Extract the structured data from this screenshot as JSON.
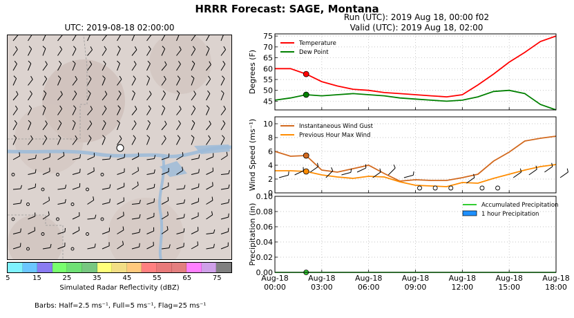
{
  "suptitle": "HRRR Forecast: SAGE, Montana",
  "map": {
    "title": "UTC: 2019-08-18 02:00:00",
    "colorbar_label": "Simulated Radar Reflectivity (dBZ)",
    "colorbar_ticks": [
      "5",
      "15",
      "25",
      "35",
      "45",
      "55",
      "65",
      "75"
    ],
    "colorbar_colors": [
      "#7ff2ff",
      "#6bc6ff",
      "#8a7cf2",
      "#78ff6e",
      "#6fe075",
      "#78c781",
      "#ffff7a",
      "#f2de85",
      "#ffc97d",
      "#ff8080",
      "#e87a7a",
      "#e37f7f",
      "#ff80ff",
      "#cfa0e8",
      "#808080"
    ],
    "barbs_note": "Barbs: Half=2.5 ms⁻¹, Full=5 ms⁻¹, Flag=25 ms⁻¹"
  },
  "run": {
    "line1": "Run (UTC): 2019 Aug 18, 00:00 f02",
    "line2": "Valid (UTC): 2019 Aug 18, 02:00"
  },
  "chart_data": [
    {
      "type": "line",
      "ylabel": "Degrees (F)",
      "ylim": [
        41,
        76
      ],
      "yticks": [
        45,
        50,
        55,
        60,
        65,
        70,
        75
      ],
      "grid": true,
      "legend": "top-left",
      "x_hours": [
        0,
        1,
        2,
        3,
        4,
        5,
        6,
        7,
        8,
        9,
        10,
        11,
        12,
        13,
        14,
        15,
        16,
        17,
        18
      ],
      "series": [
        {
          "name": "Temperature",
          "color": "#ff0000",
          "values": [
            60,
            60,
            57.5,
            54,
            52,
            50.5,
            50,
            49,
            48.5,
            48,
            47.5,
            47,
            48,
            52.5,
            57.5,
            63,
            67.5,
            72.5,
            75
          ]
        },
        {
          "name": "Dew Point",
          "color": "#008000",
          "values": [
            45.5,
            46.5,
            48,
            47.5,
            48,
            48.5,
            48,
            47.5,
            46.5,
            46,
            45.5,
            45,
            45.5,
            47,
            49.5,
            50,
            48.5,
            43.5,
            41
          ]
        }
      ],
      "marker_hour": 2
    },
    {
      "type": "line",
      "ylabel": "Wind Speed (ms⁻¹)",
      "ylim": [
        0,
        11
      ],
      "yticks": [
        0,
        2,
        4,
        6,
        8,
        10
      ],
      "grid": true,
      "legend": "top-left",
      "x_hours": [
        0,
        1,
        2,
        3,
        4,
        5,
        6,
        7,
        8,
        9,
        10,
        11,
        12,
        13,
        14,
        15,
        16,
        17,
        18
      ],
      "series": [
        {
          "name": "Instantaneous Wind Gust",
          "color": "#d2691e",
          "values": [
            6,
            5.3,
            5.4,
            3.3,
            3,
            3.5,
            4,
            2.8,
            1.7,
            1.9,
            1.8,
            1.8,
            2.2,
            2.7,
            4.6,
            5.9,
            7.5,
            7.9,
            8.2
          ]
        },
        {
          "name": "Previous Hour Max Wind",
          "color": "#ff8c00",
          "values": [
            3.2,
            3.2,
            3.1,
            2.6,
            2.3,
            2.1,
            2.4,
            2.3,
            1.6,
            1.1,
            1,
            0.9,
            1.5,
            1.4,
            2.1,
            2.7,
            3.3,
            3.8,
            4.1
          ]
        }
      ],
      "marker_hour": 2
    },
    {
      "type": "line",
      "ylabel": "Precipitation (in)",
      "ylim": [
        0,
        0.1
      ],
      "yticks": [
        "0.00",
        "0.02",
        "0.04",
        "0.06",
        "0.08",
        "0.10"
      ],
      "grid": true,
      "legend": "top-right",
      "series": [
        {
          "name": "Accumulated Precipitation",
          "color": "#32cd32",
          "values": [
            0
          ]
        },
        {
          "name": "1 hour Precipitation",
          "color": "#1e90ff",
          "values": [
            0
          ]
        }
      ],
      "xticks": [
        {
          "hour": 0,
          "line1": "Aug-18",
          "line2": "00:00"
        },
        {
          "hour": 3,
          "line1": "Aug-18",
          "line2": "03:00"
        },
        {
          "hour": 6,
          "line1": "Aug-18",
          "line2": "06:00"
        },
        {
          "hour": 9,
          "line1": "Aug-18",
          "line2": "09:00"
        },
        {
          "hour": 12,
          "line1": "Aug-18",
          "line2": "12:00"
        },
        {
          "hour": 15,
          "line1": "Aug-18",
          "line2": "15:00"
        },
        {
          "hour": 18,
          "line1": "Aug-18",
          "line2": "18:00"
        }
      ],
      "marker_hour": 2
    }
  ]
}
